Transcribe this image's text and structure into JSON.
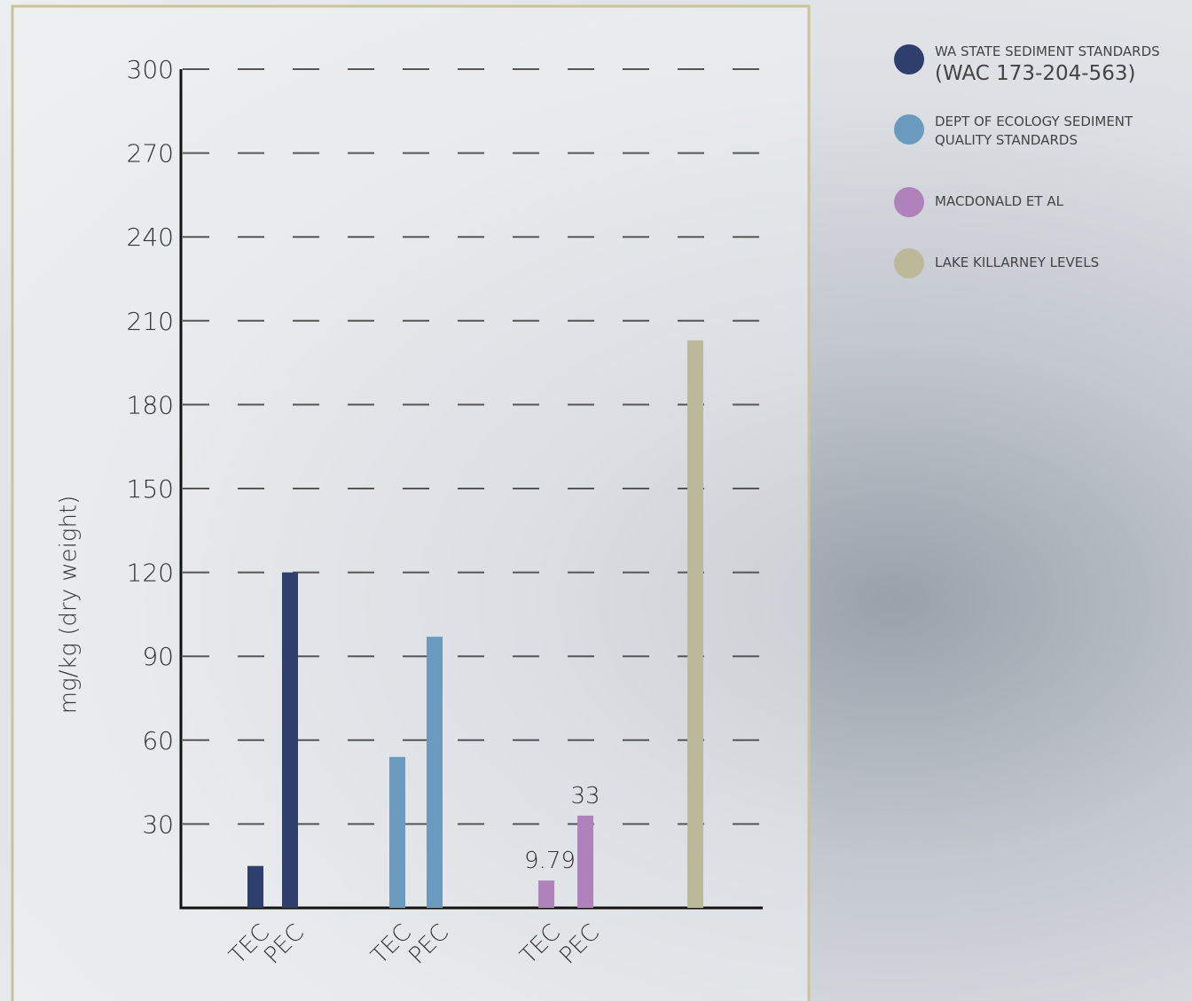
{
  "chart_data": {
    "type": "bar",
    "y_label": "mg/kg (dry weight)",
    "categories": [
      "TEC",
      "PEC",
      "TEC",
      "PEC",
      "TEC",
      "PEC",
      null
    ],
    "series": [
      {
        "name": "WA STATE SEDIMENT STANDARDS",
        "note": "(WAC 173-204-563)",
        "color": "#2e3f6e",
        "values": [
          15,
          120,
          null,
          null,
          null,
          null,
          null
        ]
      },
      {
        "name": "DEPT OF ECOLOGY SEDIMENT QUALITY STANDARDS",
        "color": "#6a9bbf",
        "values": [
          null,
          null,
          54,
          97,
          null,
          null,
          null
        ]
      },
      {
        "name": "MACDONALD ET AL",
        "color": "#b082bc",
        "values": [
          null,
          null,
          null,
          null,
          9.79,
          33,
          null
        ],
        "data_labels": true
      },
      {
        "name": "LAKE KILLARNEY LEVELS",
        "color": "#bcb99a",
        "values": [
          null,
          null,
          null,
          null,
          null,
          null,
          203
        ]
      }
    ],
    "ylim": [
      0,
      300
    ],
    "yticks": [
      30,
      60,
      90,
      120,
      150,
      180,
      210,
      240,
      270,
      300
    ],
    "grid": true
  }
}
